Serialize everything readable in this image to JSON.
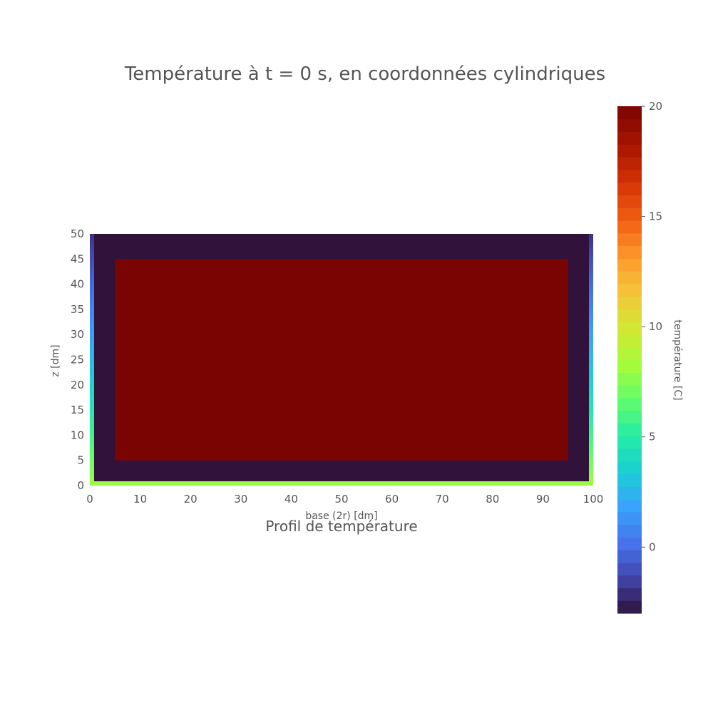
{
  "chart_data": {
    "type": "heatmap",
    "title": "Température à t = 0 s, en coordonnées cylindriques",
    "subtitle": "Profil de température",
    "xlabel": "base (2r) [dm]",
    "ylabel": "z [dm]",
    "xlim": [
      0,
      100
    ],
    "ylim": [
      0,
      50
    ],
    "x_ticks": [
      "0",
      "10",
      "20",
      "30",
      "40",
      "50",
      "60",
      "70",
      "80",
      "90",
      "100"
    ],
    "y_ticks": [
      "0",
      "5",
      "10",
      "15",
      "20",
      "25",
      "30",
      "35",
      "40",
      "45",
      "50"
    ],
    "colorbar": {
      "label": "température [C]",
      "range": [
        -3,
        20
      ],
      "ticks": [
        "0",
        "5",
        "10",
        "15",
        "20"
      ],
      "colorscale": "turbo"
    },
    "regions": [
      {
        "x": [
          0,
          100
        ],
        "y": [
          0,
          50
        ],
        "value": -3
      },
      {
        "x": [
          5,
          95
        ],
        "y": [
          5,
          45
        ],
        "value": 20
      }
    ],
    "boundaries": [
      {
        "edge": "bottom",
        "value": 8
      },
      {
        "edge": "left",
        "gradient": [
          8,
          -2
        ]
      },
      {
        "edge": "right",
        "gradient": [
          8,
          -2
        ]
      }
    ]
  }
}
